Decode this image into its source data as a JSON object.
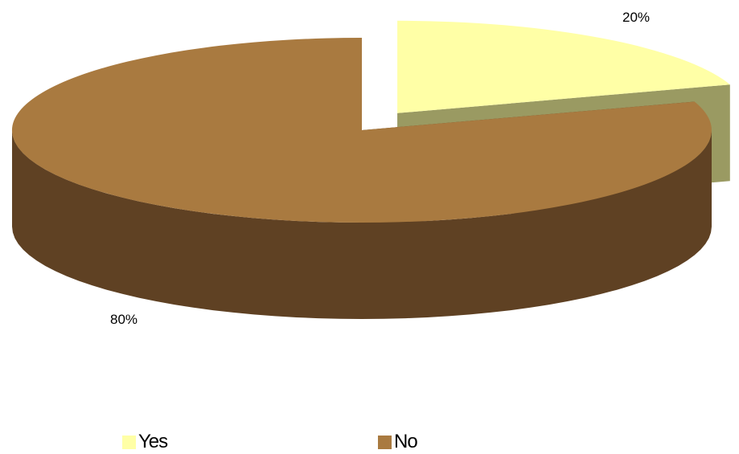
{
  "chart_data": {
    "type": "pie",
    "title": "",
    "three_d": true,
    "exploded_slice": "Yes",
    "categories": [
      "Yes",
      "No"
    ],
    "values": [
      20,
      80
    ],
    "data_labels": [
      "20%",
      "80%"
    ],
    "legend_position": "bottom",
    "legend": [
      {
        "label": "Yes",
        "color": "#ffffa6"
      },
      {
        "label": "No",
        "color": "#a97a40"
      }
    ],
    "colors": {
      "Yes": {
        "top": "#ffffa6",
        "side": "#9a9a62"
      },
      "No": {
        "top": "#a97a40",
        "side": "#5f4123"
      }
    }
  }
}
